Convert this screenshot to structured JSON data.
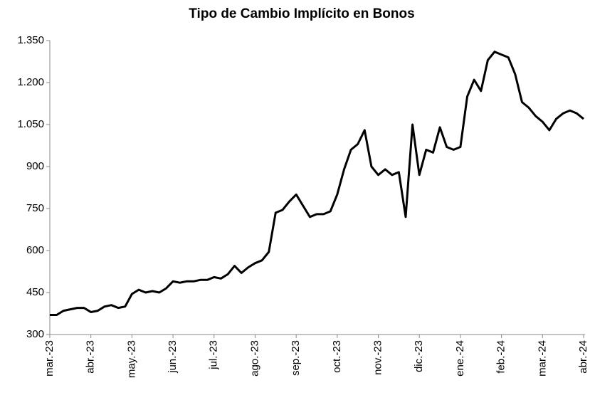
{
  "chart_data": {
    "type": "line",
    "title": "Tipo de Cambio Implícito en Bonos",
    "categories": [
      "mar.-23",
      null,
      null,
      null,
      null,
      null,
      "abr.-23",
      null,
      null,
      null,
      null,
      null,
      "may.-23",
      null,
      null,
      null,
      null,
      null,
      "jun.-23",
      null,
      null,
      null,
      null,
      null,
      "jul.-23",
      null,
      null,
      null,
      null,
      null,
      "ago.-23",
      null,
      null,
      null,
      null,
      null,
      "sep.-23",
      null,
      null,
      null,
      null,
      null,
      "oct.-23",
      null,
      null,
      null,
      null,
      null,
      "nov.-23",
      null,
      null,
      null,
      null,
      null,
      "dic.-23",
      null,
      null,
      null,
      null,
      null,
      "ene.-24",
      null,
      null,
      null,
      null,
      null,
      "feb.-24",
      null,
      null,
      null,
      null,
      null,
      "mar.-24",
      null,
      null,
      null,
      null,
      null,
      "abr.-24"
    ],
    "series": [
      {
        "color": "#000000",
        "values": [
          370,
          370,
          385,
          390,
          395,
          395,
          380,
          385,
          400,
          405,
          395,
          400,
          445,
          460,
          450,
          455,
          450,
          465,
          490,
          485,
          490,
          490,
          495,
          495,
          505,
          500,
          515,
          545,
          520,
          540,
          555,
          565,
          595,
          735,
          745,
          775,
          800,
          760,
          720,
          730,
          730,
          740,
          800,
          890,
          960,
          980,
          1030,
          900,
          870,
          890,
          870,
          880,
          720,
          1050,
          870,
          960,
          950,
          1040,
          970,
          960,
          970,
          1150,
          1210,
          1170,
          1280,
          1310,
          1300,
          1290,
          1230,
          1130,
          1110,
          1080,
          1060,
          1030,
          1070,
          1090,
          1100,
          1090,
          1070
        ]
      }
    ],
    "ylim": [
      300,
      1350
    ],
    "yticks": [
      300,
      450,
      600,
      750,
      900,
      {
        "value": 1050,
        "label": "1.050"
      },
      {
        "value": 1200,
        "label": "1.200"
      },
      {
        "value": 1350,
        "label": "1.350"
      }
    ]
  }
}
